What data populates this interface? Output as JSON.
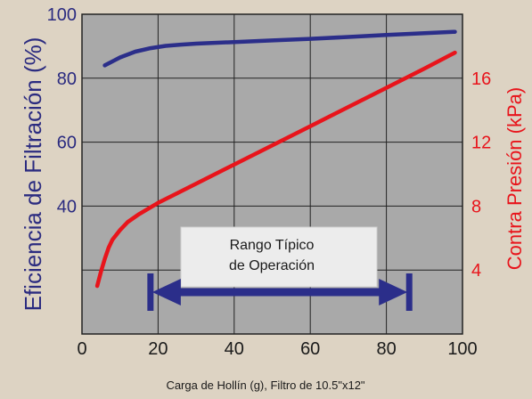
{
  "chart_data": {
    "type": "line",
    "xlabel": "Carga de Hollín  (g), Filtro de 10.5\"x12\"",
    "ylabel_left": "Eficiencia de Filtración (%)",
    "ylabel_right": "Contra Presión (kPa)",
    "xlim": [
      0,
      100
    ],
    "ylim_left": [
      0,
      100
    ],
    "ylim_right": [
      0,
      20
    ],
    "x_ticks": [
      "0",
      "20",
      "40",
      "60",
      "80",
      "100"
    ],
    "y_left_ticks": [
      "40",
      "60",
      "80",
      "100"
    ],
    "y_right_ticks": [
      "4",
      "8",
      "12",
      "16"
    ],
    "grid": true,
    "series": [
      {
        "axis": "left",
        "color": "#2b2e8a",
        "x": [
          6,
          10,
          14,
          18,
          22,
          26,
          30,
          40,
          50,
          60,
          70,
          80,
          90,
          98
        ],
        "y": [
          84,
          86.5,
          88.3,
          89.4,
          90.1,
          90.5,
          90.8,
          91.3,
          91.8,
          92.3,
          92.9,
          93.5,
          94.1,
          94.5
        ]
      },
      {
        "axis": "right",
        "color": "#e8141b",
        "x": [
          4,
          5,
          6,
          7,
          8,
          10,
          12,
          15,
          20,
          25,
          30,
          40,
          50,
          60,
          70,
          80,
          90,
          98
        ],
        "y": [
          3.0,
          3.9,
          4.7,
          5.4,
          5.9,
          6.5,
          7.0,
          7.5,
          8.2,
          8.8,
          9.4,
          10.6,
          11.8,
          13.0,
          14.2,
          15.4,
          16.6,
          17.6
        ]
      }
    ],
    "annotation": {
      "lines": [
        "Rango Típico",
        "de Operación"
      ],
      "range_x": [
        18,
        86
      ],
      "arrow_color": "#2b2e8a"
    }
  }
}
